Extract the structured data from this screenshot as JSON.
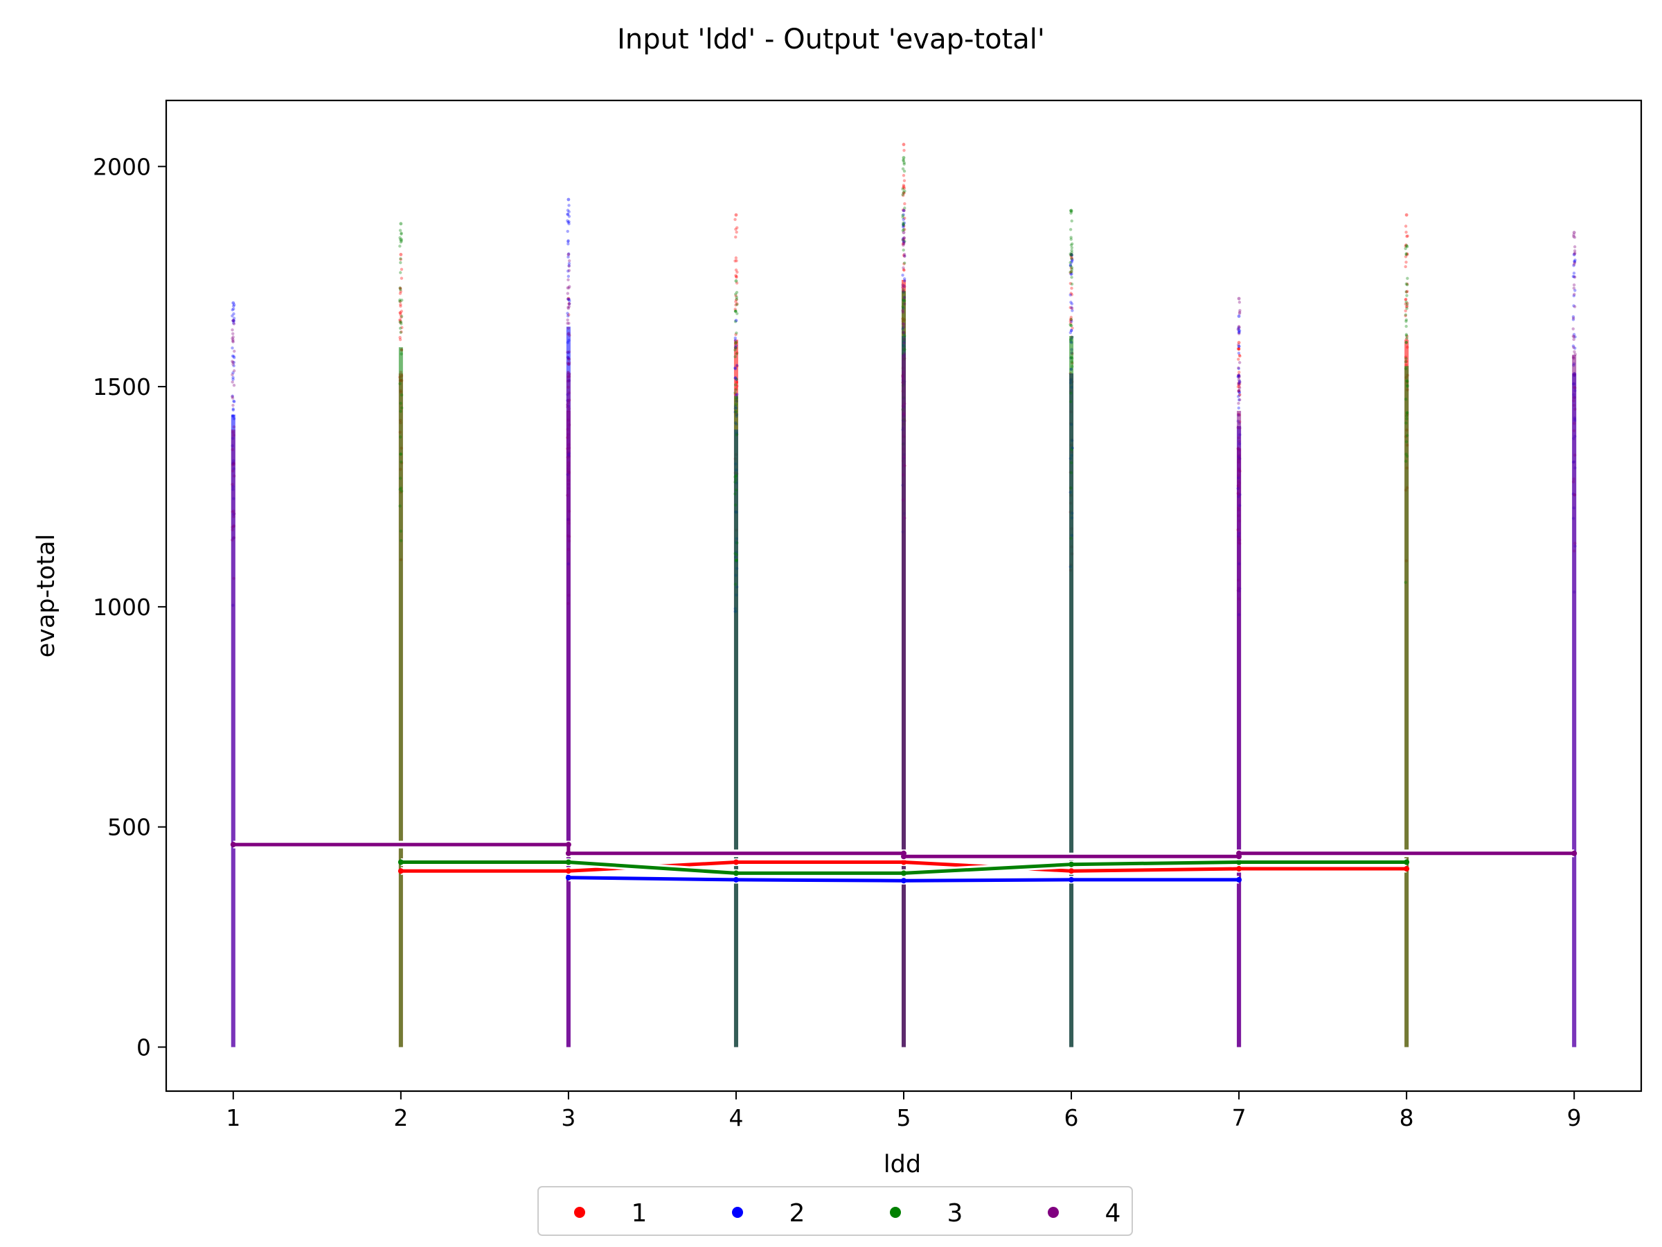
{
  "chart_data": {
    "type": "scatter",
    "title": "Input 'ldd' - Output 'evap-total'",
    "xlabel": "ldd",
    "ylabel": "evap-total",
    "xlim": [
      0.6,
      9.4
    ],
    "ylim": [
      -100,
      2150
    ],
    "x_ticks": [
      1,
      2,
      3,
      4,
      5,
      6,
      7,
      8,
      9
    ],
    "y_ticks": [
      0,
      500,
      1000,
      1500,
      2000
    ],
    "grid": false,
    "legend_position": "bottom-center",
    "series": [
      {
        "name": "1",
        "color": "#ff0000",
        "points": [
          {
            "x": 2,
            "ymax": 1800
          },
          {
            "x": 3,
            "ymax": 1700
          },
          {
            "x": 4,
            "ymax": 1890
          },
          {
            "x": 5,
            "ymax": 2050
          },
          {
            "x": 6,
            "ymax": 1800
          },
          {
            "x": 7,
            "ymax": 1600
          },
          {
            "x": 8,
            "ymax": 1890
          }
        ],
        "mean_line": [
          {
            "x": 2,
            "y": 400
          },
          {
            "x": 3,
            "y": 400
          },
          {
            "x": 4,
            "y": 420
          },
          {
            "x": 5,
            "y": 420
          },
          {
            "x": 6,
            "y": 400
          },
          {
            "x": 7,
            "y": 405
          },
          {
            "x": 8,
            "y": 405
          }
        ]
      },
      {
        "name": "2",
        "color": "#0000ff",
        "points": [
          {
            "x": 1,
            "ymax": 1690
          },
          {
            "x": 3,
            "ymax": 1925
          },
          {
            "x": 4,
            "ymax": 1650
          },
          {
            "x": 5,
            "ymax": 1900
          },
          {
            "x": 6,
            "ymax": 1800
          },
          {
            "x": 7,
            "ymax": 1660
          },
          {
            "x": 9,
            "ymax": 1800
          }
        ],
        "mean_line": [
          {
            "x": 3,
            "y": 385
          },
          {
            "x": 4,
            "y": 380
          },
          {
            "x": 5,
            "y": 378
          },
          {
            "x": 6,
            "y": 380
          },
          {
            "x": 7,
            "y": 380
          }
        ]
      },
      {
        "name": "3",
        "color": "#008000",
        "points": [
          {
            "x": 2,
            "ymax": 1870
          },
          {
            "x": 4,
            "ymax": 1740
          },
          {
            "x": 5,
            "ymax": 2020
          },
          {
            "x": 6,
            "ymax": 1900
          },
          {
            "x": 8,
            "ymax": 1820
          }
        ],
        "mean_line": [
          {
            "x": 2,
            "y": 420
          },
          {
            "x": 3,
            "y": 420
          },
          {
            "x": 4,
            "y": 395
          },
          {
            "x": 5,
            "y": 395
          },
          {
            "x": 6,
            "y": 415
          },
          {
            "x": 7,
            "y": 420
          },
          {
            "x": 8,
            "y": 420
          }
        ]
      },
      {
        "name": "4",
        "color": "#800080",
        "points": [
          {
            "x": 1,
            "ymax": 1650
          },
          {
            "x": 3,
            "ymax": 1800
          },
          {
            "x": 5,
            "ymax": 1850
          },
          {
            "x": 7,
            "ymax": 1700
          },
          {
            "x": 9,
            "ymax": 1850
          }
        ],
        "mean_line": [
          {
            "x": 1,
            "y": 460
          },
          {
            "x": 3,
            "y": 460
          },
          {
            "x": 3,
            "y": 440
          },
          {
            "x": 5,
            "y": 440
          },
          {
            "x": 5,
            "y": 433
          },
          {
            "x": 7,
            "y": 433
          },
          {
            "x": 7,
            "y": 440
          },
          {
            "x": 9,
            "y": 440
          }
        ]
      }
    ]
  }
}
